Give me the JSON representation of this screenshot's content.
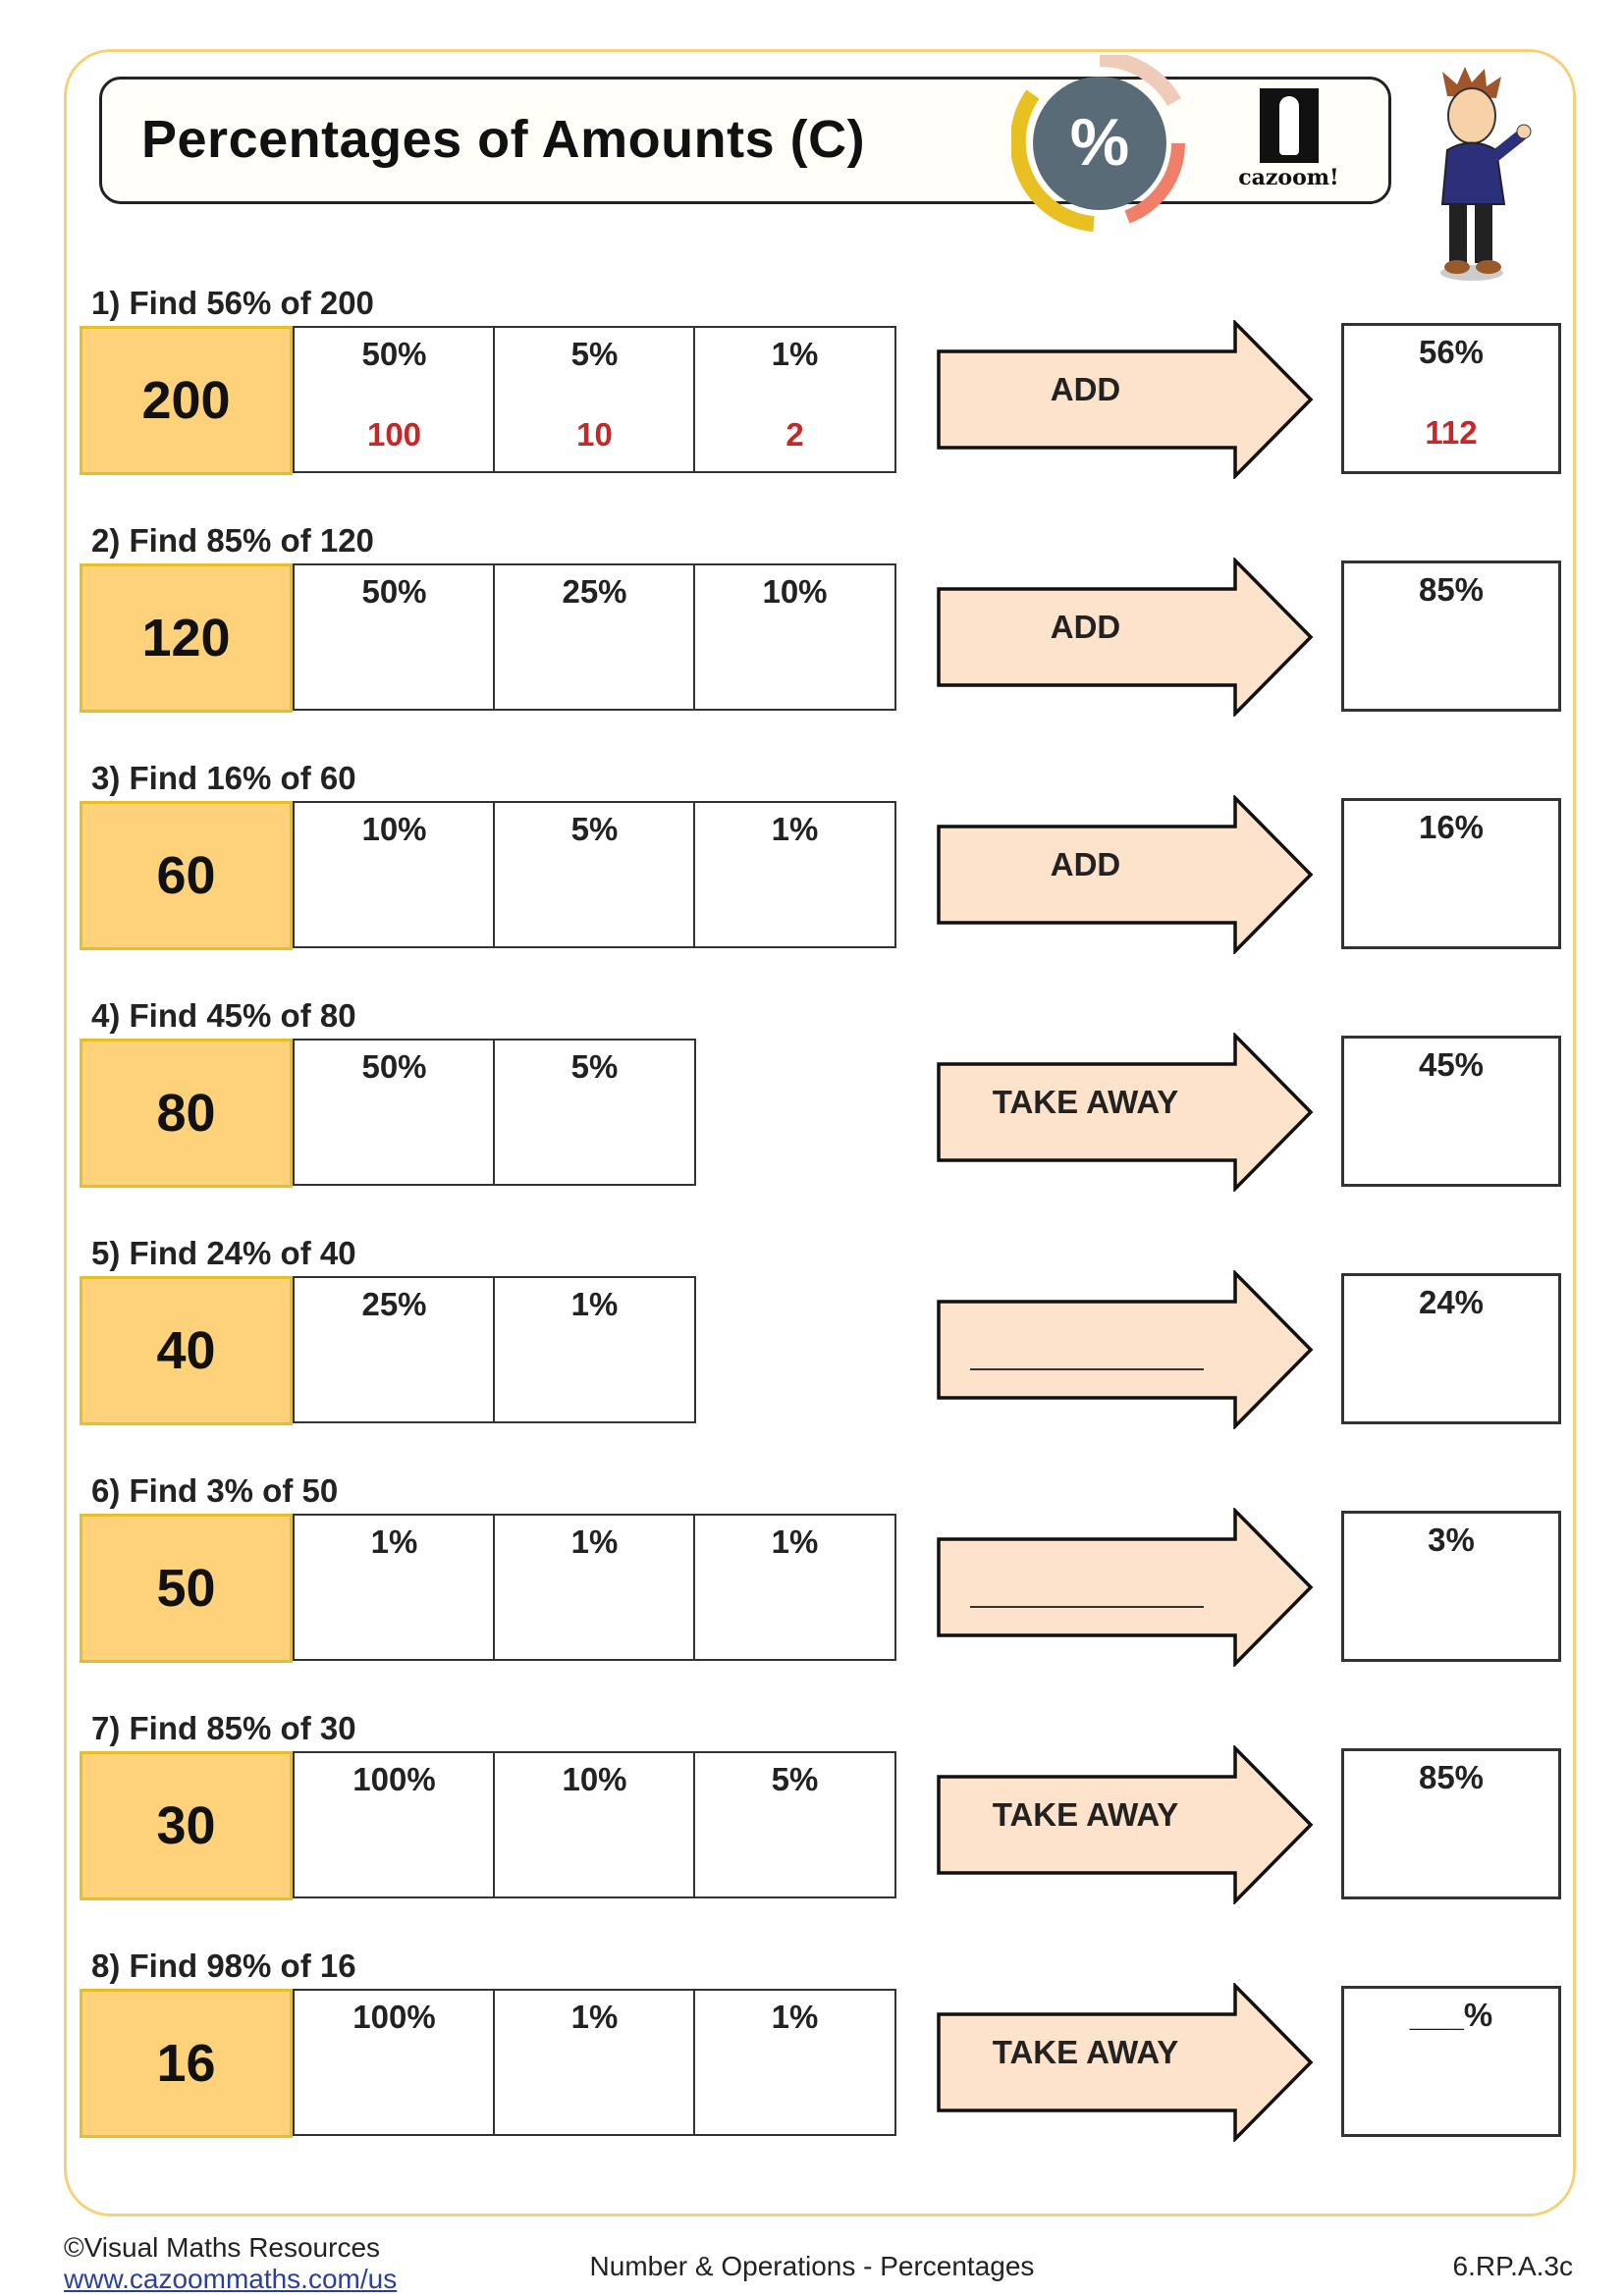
{
  "header": {
    "title": "Percentages of Amounts (C)",
    "badge_symbol": "%",
    "logo_text": "cazoom!"
  },
  "colors": {
    "amount_fill": "#fdd27a",
    "amount_border": "#e8bd2a",
    "arrow_fill": "#fde3cb",
    "answer_red": "#c62828",
    "frame": "#f5d27a",
    "badge_center": "#5a6b78",
    "badge_yellow": "#e9c021",
    "badge_salmon": "#ef7f68",
    "badge_peach": "#efcbb9"
  },
  "questions": [
    {
      "label": "1) Find 56% of 200",
      "amount": "200",
      "cells": [
        {
          "pct": "50%",
          "val": "100"
        },
        {
          "pct": "5%",
          "val": "10"
        },
        {
          "pct": "1%",
          "val": "2"
        }
      ],
      "operation": "ADD",
      "answer_pct": "56%",
      "answer_val": "112"
    },
    {
      "label": "2) Find 85% of 120",
      "amount": "120",
      "cells": [
        {
          "pct": "50%"
        },
        {
          "pct": "25%"
        },
        {
          "pct": "10%"
        }
      ],
      "operation": "ADD",
      "answer_pct": "85%"
    },
    {
      "label": "3) Find 16% of 60",
      "amount": "60",
      "cells": [
        {
          "pct": "10%"
        },
        {
          "pct": "5%"
        },
        {
          "pct": "1%"
        }
      ],
      "operation": "ADD",
      "answer_pct": "16%"
    },
    {
      "label": "4) Find 45% of 80",
      "amount": "80",
      "cells": [
        {
          "pct": "50%"
        },
        {
          "pct": "5%"
        }
      ],
      "operation": "TAKE AWAY",
      "answer_pct": "45%"
    },
    {
      "label": "5) Find 24% of 40",
      "amount": "40",
      "cells": [
        {
          "pct": "25%"
        },
        {
          "pct": "1%"
        }
      ],
      "operation": "",
      "answer_pct": "24%"
    },
    {
      "label": "6) Find 3% of 50",
      "amount": "50",
      "cells": [
        {
          "pct": "1%"
        },
        {
          "pct": "1%"
        },
        {
          "pct": "1%"
        }
      ],
      "operation": "",
      "answer_pct": "3%"
    },
    {
      "label": "7) Find 85% of 30",
      "amount": "30",
      "cells": [
        {
          "pct": "100%"
        },
        {
          "pct": "10%"
        },
        {
          "pct": "5%"
        }
      ],
      "operation": "TAKE AWAY",
      "answer_pct": "85%"
    },
    {
      "label": "8) Find 98% of 16",
      "amount": "16",
      "cells": [
        {
          "pct": "100%"
        },
        {
          "pct": "1%"
        },
        {
          "pct": "1%"
        }
      ],
      "operation": "TAKE AWAY",
      "answer_pct": "___%"
    }
  ],
  "footer": {
    "copyright": "©Visual Maths Resources",
    "website": "www.cazoommaths.com/us",
    "topic": "Number & Operations - Percentages",
    "standard": "6.RP.A.3c"
  }
}
